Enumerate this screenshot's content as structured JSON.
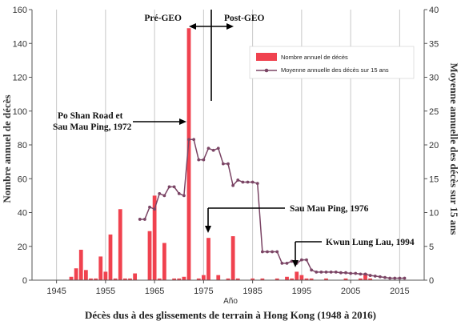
{
  "chart_data": {
    "type": "bar",
    "title": "Décès dus à des glissements de terrain à Hong Kong (1948 à 2016)",
    "xlabel": "Año",
    "ylabel_left": "Nombre annuel de décès",
    "ylabel_right": "Moyenne annuelle des décès sur 15 ans",
    "xlim": [
      1940,
      2020
    ],
    "ylim_left": [
      0,
      160
    ],
    "ylim_right": [
      0,
      40
    ],
    "x_ticks": [
      1945,
      1955,
      1965,
      1975,
      1985,
      1995,
      2005,
      2015
    ],
    "y_ticks_left": [
      0,
      20,
      40,
      60,
      80,
      100,
      120,
      140,
      160
    ],
    "y_ticks_right": [
      0,
      5,
      10,
      15,
      20,
      25,
      30,
      35,
      40
    ],
    "grid": "vertical",
    "legend_position": "top-right",
    "colors": {
      "bars": "#f0424f",
      "line": "#7b4565",
      "grid": "#c8c8c8",
      "axis": "#555555"
    },
    "series": [
      {
        "name": "Nombre annuel de décès",
        "kind": "bar",
        "x": [
          1948,
          1949,
          1950,
          1951,
          1952,
          1953,
          1954,
          1955,
          1956,
          1957,
          1958,
          1959,
          1960,
          1961,
          1962,
          1963,
          1964,
          1965,
          1966,
          1967,
          1968,
          1969,
          1970,
          1971,
          1972,
          1973,
          1974,
          1975,
          1976,
          1977,
          1978,
          1979,
          1980,
          1981,
          1982,
          1983,
          1984,
          1985,
          1986,
          1987,
          1988,
          1989,
          1990,
          1991,
          1992,
          1993,
          1994,
          1995,
          1996,
          1997,
          1998,
          1999,
          2000,
          2001,
          2002,
          2003,
          2004,
          2005,
          2006,
          2007,
          2008,
          2009,
          2010,
          2011,
          2012,
          2013,
          2014,
          2015,
          2016
        ],
        "values": [
          2,
          7,
          18,
          6,
          1,
          1,
          14,
          5,
          27,
          1,
          42,
          1,
          1,
          4,
          0,
          0,
          29,
          50,
          1,
          22,
          0,
          1,
          1,
          2,
          149,
          0,
          1,
          3,
          25,
          0,
          3,
          0,
          1,
          26,
          1,
          0,
          0,
          1,
          0,
          1,
          0,
          0,
          1,
          0,
          2,
          1,
          5,
          3,
          1,
          1,
          0,
          0,
          1,
          0,
          0,
          0,
          1,
          0,
          0,
          1,
          4,
          1,
          0,
          0,
          0,
          0,
          0,
          0,
          0
        ]
      },
      {
        "name": "Moyenne annuelle des décès sur 15 ans",
        "kind": "line",
        "x": [
          1962,
          1963,
          1964,
          1965,
          1966,
          1967,
          1968,
          1969,
          1970,
          1971,
          1972,
          1973,
          1974,
          1975,
          1976,
          1977,
          1978,
          1979,
          1980,
          1981,
          1982,
          1983,
          1984,
          1985,
          1986,
          1987,
          1988,
          1989,
          1990,
          1991,
          1992,
          1993,
          1994,
          1995,
          1996,
          1997,
          1998,
          1999,
          2000,
          2001,
          2002,
          2003,
          2004,
          2005,
          2006,
          2007,
          2008,
          2009,
          2010,
          2011,
          2012,
          2013,
          2014,
          2015,
          2016
        ],
        "values": [
          9,
          9,
          10.8,
          10.5,
          12.8,
          12.5,
          13.8,
          13.8,
          12.8,
          12.5,
          20.8,
          20.8,
          17.8,
          17.8,
          19.5,
          19.2,
          19.5,
          17.2,
          17.2,
          14,
          14.8,
          14.5,
          14.5,
          14.5,
          14.3,
          4.2,
          4.2,
          4.2,
          4.2,
          2.5,
          2.5,
          2.8,
          2.5,
          3,
          3,
          1.5,
          1.2,
          1.2,
          1.2,
          1.2,
          1.2,
          1.1,
          1.1,
          1,
          1,
          0.9,
          0.9,
          0.7,
          0.6,
          0.5,
          0.4,
          0.3,
          0.3,
          0.3,
          0.3
        ]
      }
    ],
    "annotations": {
      "pre_geo": "Pré-GEO",
      "post_geo": "Post-GEO",
      "po_shan_line1": "Po Shan Road et",
      "po_shan_line2": "Sau Mau Ping, 1972",
      "sau_mau_ping": "Sau Mau Ping, 1976",
      "kwun_lung_lau": "Kwun Lung Lau, 1994"
    }
  }
}
